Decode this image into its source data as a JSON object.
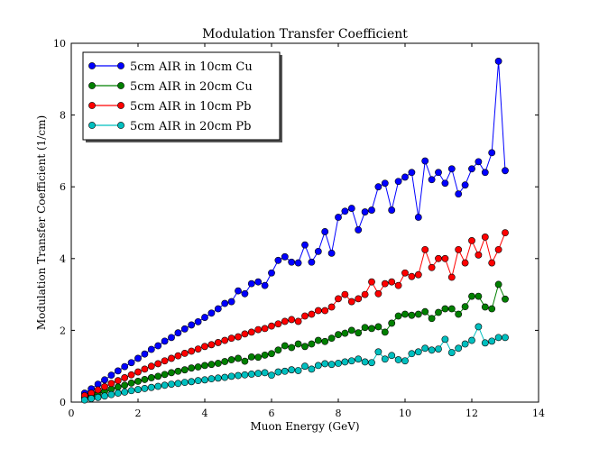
{
  "chart_data": {
    "type": "line",
    "title": "Modulation Transfer Coefficient",
    "xlabel": "Muon Energy (GeV)",
    "ylabel": "Modulation Transfer Coefficient (1/cm)",
    "xlim": [
      0,
      14
    ],
    "ylim": [
      0,
      10
    ],
    "xticks": [
      "0",
      "2",
      "4",
      "6",
      "8",
      "10",
      "12",
      "14"
    ],
    "yticks": [
      "0",
      "2",
      "4",
      "6",
      "8",
      "10"
    ],
    "legend_position": "top-left",
    "x": [
      0.4,
      0.6,
      0.8,
      1.0,
      1.2,
      1.4,
      1.6,
      1.8,
      2.0,
      2.2,
      2.4,
      2.6,
      2.8,
      3.0,
      3.2,
      3.4,
      3.6,
      3.8,
      4.0,
      4.2,
      4.4,
      4.6,
      4.8,
      5.0,
      5.2,
      5.4,
      5.6,
      5.8,
      6.0,
      6.2,
      6.4,
      6.6,
      6.8,
      7.0,
      7.2,
      7.4,
      7.6,
      7.8,
      8.0,
      8.2,
      8.4,
      8.6,
      8.8,
      9.0,
      9.2,
      9.4,
      9.6,
      9.8,
      10.0,
      10.2,
      10.4,
      10.6,
      10.8,
      11.0,
      11.2,
      11.4,
      11.6,
      11.8,
      12.0,
      12.2,
      12.4,
      12.6,
      12.8,
      13.0
    ],
    "series": [
      {
        "name": "5cm AIR in 10cm Cu",
        "color": "#0000ff",
        "values": [
          0.25,
          0.37,
          0.5,
          0.62,
          0.75,
          0.87,
          0.99,
          1.1,
          1.22,
          1.34,
          1.47,
          1.57,
          1.7,
          1.8,
          1.93,
          2.04,
          2.15,
          2.24,
          2.36,
          2.48,
          2.6,
          2.75,
          2.8,
          3.1,
          3.02,
          3.3,
          3.35,
          3.25,
          3.6,
          3.95,
          4.05,
          3.9,
          3.88,
          4.38,
          3.9,
          4.2,
          4.75,
          4.15,
          5.15,
          5.32,
          5.4,
          4.8,
          5.3,
          5.35,
          6.0,
          6.1,
          5.35,
          6.15,
          6.27,
          6.4,
          5.15,
          6.72,
          6.2,
          6.4,
          6.1,
          6.5,
          5.8,
          6.05,
          6.5,
          6.7,
          6.4,
          6.95,
          9.5,
          6.45
        ]
      },
      {
        "name": "5cm AIR in 20cm Cu",
        "color": "#008000",
        "values": [
          0.12,
          0.18,
          0.24,
          0.3,
          0.36,
          0.42,
          0.47,
          0.53,
          0.58,
          0.63,
          0.68,
          0.72,
          0.77,
          0.82,
          0.86,
          0.9,
          0.95,
          0.98,
          1.02,
          1.05,
          1.08,
          1.13,
          1.18,
          1.22,
          1.14,
          1.26,
          1.25,
          1.31,
          1.35,
          1.45,
          1.57,
          1.52,
          1.62,
          1.55,
          1.62,
          1.72,
          1.69,
          1.78,
          1.88,
          1.92,
          2.0,
          1.93,
          2.08,
          2.05,
          2.1,
          1.95,
          2.2,
          2.4,
          2.45,
          2.42,
          2.45,
          2.52,
          2.33,
          2.5,
          2.6,
          2.6,
          2.45,
          2.66,
          2.95,
          2.95,
          2.65,
          2.6,
          3.28,
          2.87
        ]
      },
      {
        "name": "5cm AIR in 10cm Pb",
        "color": "#ff0000",
        "values": [
          0.18,
          0.25,
          0.34,
          0.43,
          0.52,
          0.6,
          0.68,
          0.76,
          0.84,
          0.92,
          1.0,
          1.07,
          1.15,
          1.22,
          1.29,
          1.36,
          1.42,
          1.48,
          1.55,
          1.6,
          1.66,
          1.72,
          1.78,
          1.82,
          1.9,
          1.95,
          2.02,
          2.05,
          2.12,
          2.18,
          2.25,
          2.3,
          2.25,
          2.4,
          2.45,
          2.55,
          2.55,
          2.65,
          2.88,
          3.0,
          2.8,
          2.88,
          3.0,
          3.35,
          3.02,
          3.3,
          3.35,
          3.25,
          3.6,
          3.5,
          3.55,
          4.25,
          3.75,
          4.0,
          4.0,
          3.48,
          4.25,
          3.88,
          4.5,
          4.1,
          4.6,
          3.88,
          4.25,
          4.72
        ]
      },
      {
        "name": "5cm AIR in 20cm Pb",
        "color": "#00bfbf",
        "values": [
          0.06,
          0.1,
          0.13,
          0.17,
          0.21,
          0.25,
          0.28,
          0.32,
          0.35,
          0.38,
          0.41,
          0.44,
          0.47,
          0.5,
          0.52,
          0.55,
          0.57,
          0.6,
          0.62,
          0.65,
          0.67,
          0.69,
          0.72,
          0.74,
          0.76,
          0.78,
          0.8,
          0.82,
          0.75,
          0.84,
          0.86,
          0.9,
          0.88,
          1.0,
          0.92,
          1.02,
          1.07,
          1.05,
          1.08,
          1.12,
          1.15,
          1.2,
          1.12,
          1.1,
          1.4,
          1.2,
          1.3,
          1.18,
          1.15,
          1.35,
          1.4,
          1.5,
          1.45,
          1.48,
          1.75,
          1.38,
          1.5,
          1.62,
          1.72,
          2.1,
          1.65,
          1.7,
          1.8,
          1.8
        ]
      }
    ]
  }
}
